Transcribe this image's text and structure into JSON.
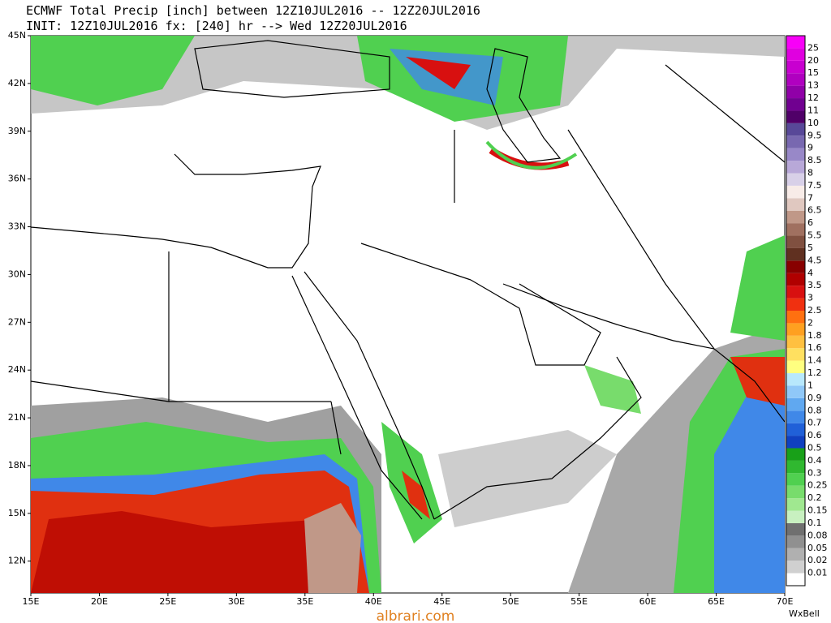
{
  "header": {
    "line1": "ECMWF Total Precip [inch] between 12Z10JUL2016 -- 12Z20JUL2016",
    "line2": "INIT: 12Z10JUL2016 fx: [240] hr --> Wed 12Z20JUL2016"
  },
  "map": {
    "lon_range": [
      15,
      70
    ],
    "lat_range": [
      10,
      45
    ],
    "lat_ticks": [
      {
        "value": 45,
        "label": "45N"
      },
      {
        "value": 42,
        "label": "42N"
      },
      {
        "value": 39,
        "label": "39N"
      },
      {
        "value": 36,
        "label": "36N"
      },
      {
        "value": 33,
        "label": "33N"
      },
      {
        "value": 30,
        "label": "30N"
      },
      {
        "value": 27,
        "label": "27N"
      },
      {
        "value": 24,
        "label": "24N"
      },
      {
        "value": 21,
        "label": "21N"
      },
      {
        "value": 18,
        "label": "18N"
      },
      {
        "value": 15,
        "label": "15N"
      },
      {
        "value": 12,
        "label": "12N"
      }
    ],
    "lon_ticks": [
      {
        "value": 15,
        "label": "15E"
      },
      {
        "value": 20,
        "label": "20E"
      },
      {
        "value": 25,
        "label": "25E"
      },
      {
        "value": 30,
        "label": "30E"
      },
      {
        "value": 35,
        "label": "35E"
      },
      {
        "value": 40,
        "label": "40E"
      },
      {
        "value": 45,
        "label": "45E"
      },
      {
        "value": 50,
        "label": "50E"
      },
      {
        "value": 55,
        "label": "55E"
      },
      {
        "value": 60,
        "label": "60E"
      },
      {
        "value": 65,
        "label": "65E"
      },
      {
        "value": 70,
        "label": "70E"
      }
    ]
  },
  "colorbar": {
    "levels": [
      0.01,
      0.02,
      0.05,
      0.08,
      0.1,
      0.15,
      0.2,
      0.25,
      0.3,
      0.4,
      0.5,
      0.6,
      0.7,
      0.8,
      0.9,
      1,
      1.2,
      1.4,
      1.6,
      1.8,
      2,
      2.5,
      3,
      3.5,
      4,
      4.5,
      5,
      5.5,
      6,
      6.5,
      7,
      7.5,
      8,
      8.5,
      9,
      9.5,
      10,
      11,
      12,
      13,
      15,
      20,
      25
    ],
    "colors": [
      "#ffffff",
      "#d0d0d0",
      "#b0b0b0",
      "#909090",
      "#707070",
      "#c8f0c0",
      "#a0e890",
      "#78dc6c",
      "#50d050",
      "#30b830",
      "#18a018",
      "#1040c0",
      "#2060d8",
      "#4088e8",
      "#60a8f0",
      "#90c8f8",
      "#b8e8fc",
      "#ffff80",
      "#ffe060",
      "#ffc040",
      "#ffa020",
      "#ff7010",
      "#f03010",
      "#d81010",
      "#b00000",
      "#880000",
      "#603020",
      "#805040",
      "#a07060",
      "#c09888",
      "#e0c8c0",
      "#f8ece8",
      "#d8d0e8",
      "#b8a8d8",
      "#9888c8",
      "#7868b0",
      "#584898",
      "#500068",
      "#700090",
      "#9000a8",
      "#b000c0",
      "#c800d0",
      "#e000e0",
      "#f800f8"
    ]
  },
  "footer": {
    "brand": "WxBell",
    "site": "albrari.com"
  }
}
